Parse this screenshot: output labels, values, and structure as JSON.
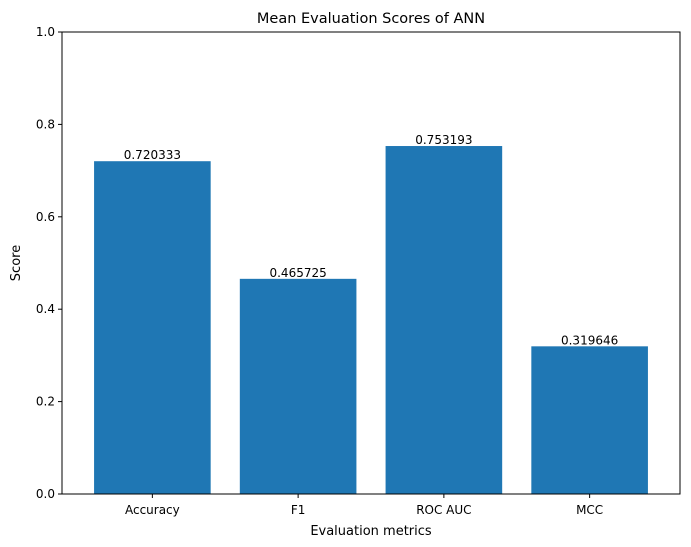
{
  "chart_data": {
    "type": "bar",
    "title": "Mean Evaluation Scores of ANN",
    "xlabel": "Evaluation metrics",
    "ylabel": "Score",
    "categories": [
      "Accuracy",
      "F1",
      "ROC AUC",
      "MCC"
    ],
    "values": [
      0.720333,
      0.465725,
      0.753193,
      0.319646
    ],
    "value_labels": [
      "0.720333",
      "0.465725",
      "0.753193",
      "0.319646"
    ],
    "ylim": [
      0,
      1.0
    ],
    "yticks": [
      "0.0",
      "0.2",
      "0.4",
      "0.6",
      "0.8",
      "1.0"
    ],
    "bar_color": "#1f77b4",
    "grid": false
  }
}
